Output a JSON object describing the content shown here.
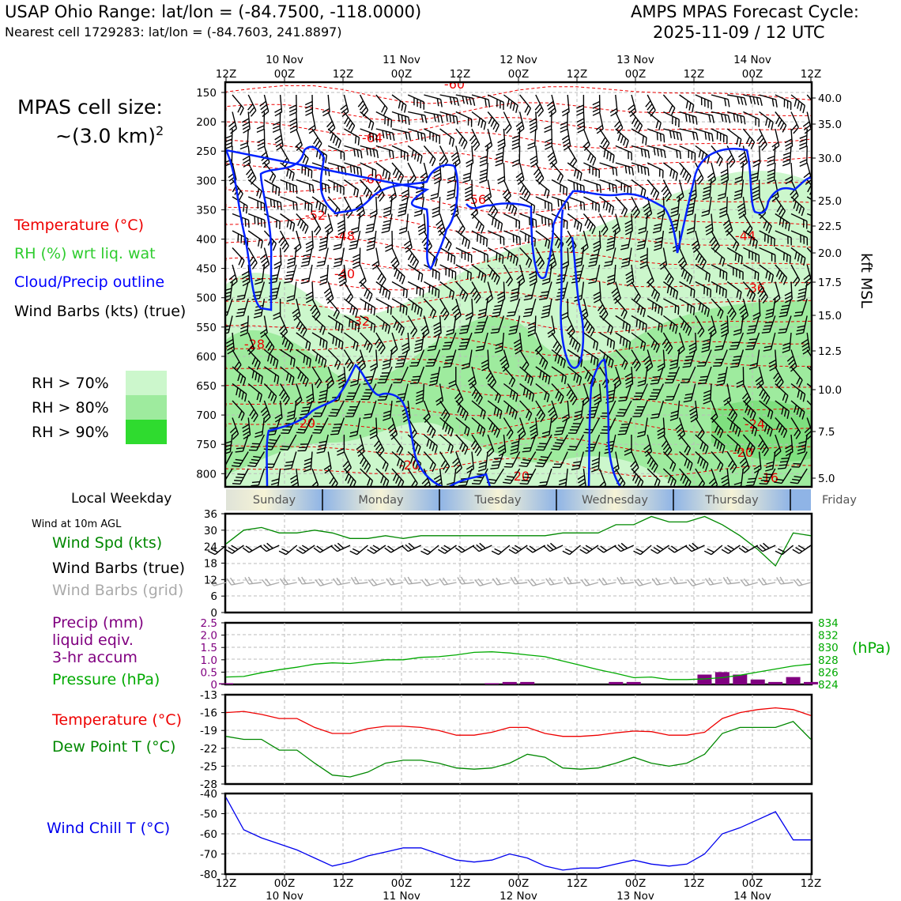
{
  "header": {
    "site_title": "USAP Ohio Range: lat/lon = (-84.7500, -118.0000)",
    "nearest_cell": "Nearest cell 1729283: lat/lon = (-84.7603, 241.8897)",
    "model_title": "AMPS MPAS Forecast Cycle:",
    "cycle": "2025-11-09 / 12 UTC"
  },
  "time_axis": {
    "top_hours": [
      "12Z",
      "00Z",
      "12Z",
      "00Z",
      "12Z",
      "00Z",
      "12Z",
      "00Z",
      "12Z",
      "00Z",
      "12Z"
    ],
    "dates": [
      "10 Nov",
      "11 Nov",
      "12 Nov",
      "13 Nov",
      "14 Nov"
    ]
  },
  "legend": {
    "cell_size_label": "MPAS cell size:",
    "cell_size_value": "~(3.0 km)",
    "cell_size_exp": "2",
    "temperature": "Temperature (°C)",
    "rh": "RH (%) wrt liq. wat",
    "cloud": "Cloud/Precip outline",
    "barbs": "Wind Barbs (kts) (true)",
    "rh70": "RH > 70%",
    "rh80": "RH > 80%",
    "rh90": "RH > 90%",
    "colors": {
      "temperature": "#ee0000",
      "rh": "#2ecc2e",
      "cloud": "#0000ff",
      "rh70": "#ccf7cc",
      "rh80": "#9eeb9e",
      "rh90": "#2fdb2f"
    }
  },
  "sections": {
    "local_weekday": "Local Weekday",
    "wind_title": "Wind at 10m AGL",
    "wind_spd": "Wind Spd (kts)",
    "wind_barbs_true": "Wind Barbs (true)",
    "wind_barbs_grid": "Wind Barbs (grid)",
    "precip1": "Precip (mm)",
    "precip2": "liquid eqiv.",
    "precip3": "3-hr accum",
    "pressure": "Pressure (hPa)",
    "pressure_unit": "(hPa)",
    "temp": "Temperature (°C)",
    "dew": "Dew Point T (°C)",
    "wind_chill": "Wind Chill T (°C)"
  },
  "chart_data": [
    {
      "type": "contour",
      "title": "Upper-air cross section",
      "yaxis_left": [
        "150",
        "200",
        "250",
        "300",
        "350",
        "400",
        "450",
        "500",
        "550",
        "600",
        "650",
        "700",
        "750",
        "800"
      ],
      "yaxis_right": [
        "40.0",
        "35.0",
        "30.0",
        "25.0",
        "22.5",
        "20.0",
        "17.5",
        "15.0",
        "12.5",
        "10.0",
        "7.5",
        "5.0"
      ],
      "ylabel_right": "kft MSL",
      "temperature_labels": [
        "-60",
        "-64",
        "-60",
        "-56",
        "-52",
        "-48",
        "-44",
        "-40",
        "-36",
        "-32",
        "-28",
        "-20",
        "-24",
        "-20",
        "-20",
        "-20",
        "-16"
      ]
    },
    {
      "type": "category",
      "weekdays": [
        "Sunday",
        "Monday",
        "Tuesday",
        "Wednesday",
        "Thursday",
        "Friday"
      ]
    },
    {
      "type": "line",
      "title": "Wind Spd (kts)",
      "yticks": [
        "36",
        "30",
        "24",
        "18",
        "12",
        "6",
        "0"
      ],
      "ylim": [
        0,
        36
      ],
      "values": [
        25,
        30,
        31,
        29,
        29,
        30,
        29,
        27,
        27,
        28,
        27,
        28,
        28,
        28,
        28,
        28,
        28,
        28,
        28,
        29,
        29,
        29,
        32,
        32,
        35,
        33,
        33,
        35,
        32,
        28,
        23,
        17,
        29,
        28
      ]
    },
    {
      "type": "bar+line",
      "title": "Precip (mm) / Pressure (hPa)",
      "yticks_left": [
        "2.5",
        "2.0",
        "1.5",
        "1.0",
        "0.5",
        "0"
      ],
      "yticks_right": [
        "834",
        "832",
        "830",
        "828",
        "826",
        "824"
      ],
      "ylim_left": [
        0,
        2.5
      ],
      "ylim_right": [
        824,
        834
      ],
      "precip": [
        0.05,
        0,
        0,
        0,
        0,
        0,
        0,
        0,
        0,
        0,
        0,
        0,
        0,
        0,
        0,
        0.05,
        0.1,
        0.1,
        0,
        0,
        0,
        0,
        0.1,
        0.1,
        0,
        0,
        0,
        0.4,
        0.5,
        0.4,
        0.2,
        0.1,
        0.3,
        0.1
      ],
      "pressure": [
        825.2,
        825.3,
        825.9,
        826.4,
        826.8,
        827.3,
        827.5,
        827.4,
        827.7,
        828,
        828,
        828.4,
        828.5,
        828.8,
        829.2,
        829.3,
        829.1,
        828.8,
        828.5,
        827.8,
        827.1,
        826.4,
        825.8,
        825.1,
        825.2,
        824.8,
        824.8,
        824.9,
        825.1,
        825.5,
        826,
        826.5,
        827,
        827.3
      ]
    },
    {
      "type": "line",
      "title": "Temperature / Dew Point (°C)",
      "yticks": [
        "-13",
        "-16",
        "-19",
        "-22",
        "-25",
        "-28"
      ],
      "ylim": [
        -28,
        -13
      ],
      "series": [
        {
          "name": "Temperature (°C)",
          "color": "#ee0000",
          "values": [
            -16,
            -15.8,
            -16.3,
            -17,
            -17,
            -18.5,
            -19.5,
            -19.5,
            -18.7,
            -18.3,
            -18.3,
            -18.5,
            -19,
            -19.8,
            -19.8,
            -19.3,
            -18.5,
            -18.5,
            -19.5,
            -20,
            -20,
            -19.8,
            -19.4,
            -19.1,
            -19.2,
            -19.8,
            -19.8,
            -19.3,
            -17,
            -16,
            -15.5,
            -15.2,
            -15.5,
            -16.5
          ]
        },
        {
          "name": "Dew Point T (°C)",
          "color": "#008800",
          "values": [
            -20,
            -20.5,
            -20.5,
            -22.3,
            -22.3,
            -24.5,
            -26.5,
            -26.8,
            -26,
            -24.5,
            -24,
            -24,
            -24.5,
            -25.3,
            -25.5,
            -25.3,
            -24.5,
            -23,
            -23.5,
            -25.3,
            -25.5,
            -25.3,
            -24.5,
            -23.5,
            -24.5,
            -25,
            -24.5,
            -23,
            -19.5,
            -18.5,
            -18.5,
            -18.5,
            -17.5,
            -20.5
          ]
        }
      ]
    },
    {
      "type": "line",
      "title": "Wind Chill T (°C)",
      "yticks": [
        "-40",
        "-50",
        "-60",
        "-70",
        "-80"
      ],
      "ylim": [
        -80,
        -40
      ],
      "values": [
        -42,
        -58,
        -62,
        -65,
        -68,
        -72,
        -76,
        -74,
        -71,
        -69,
        -67,
        -67,
        -70,
        -73,
        -74,
        -73,
        -70,
        -72,
        -76,
        -78,
        -77,
        -77,
        -75,
        -73,
        -75,
        -76,
        -75,
        -70,
        -60,
        -57,
        -53,
        -49,
        -63,
        -63
      ]
    }
  ]
}
